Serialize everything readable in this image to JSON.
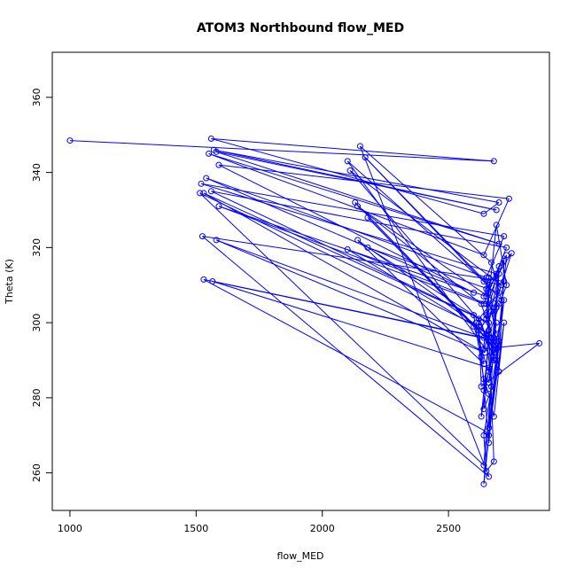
{
  "chart_data": {
    "type": "line",
    "title": "ATOM3 Northbound flow_MED",
    "xlabel": "flow_MED",
    "ylabel": "Theta (K)",
    "xlim": [
      930,
      2900
    ],
    "ylim": [
      250,
      372
    ],
    "x_ticks": [
      1000,
      1500,
      2000,
      2500
    ],
    "y_ticks": [
      260,
      280,
      300,
      320,
      340,
      360
    ],
    "grid": false,
    "line_color": "#0000ff",
    "marker": "open-circle",
    "series": [
      {
        "x": [
          1000,
          2680,
          1560,
          2640,
          2700,
          1570,
          2690,
          1580,
          2700,
          1550,
          2640,
          2740,
          1590,
          2600,
          1540,
          2650,
          2720,
          1520,
          2690,
          2650,
          1590,
          2640,
          2730,
          1560,
          2660,
          1530,
          2645,
          1580,
          2640,
          1565,
          2660,
          2700,
          1530,
          2650,
          2640,
          1515,
          2620,
          2660,
          2720,
          1525,
          2660,
          2150,
          2670,
          2710,
          2170,
          2660,
          2650,
          2680,
          2100,
          2640,
          2710,
          2110,
          2630,
          2650,
          2130,
          2620,
          2700,
          2140,
          2630,
          2690,
          2180,
          2600,
          2660,
          2690,
          2100,
          2680,
          2140,
          2640,
          2610,
          2700,
          2180,
          2600,
          2640,
          2660,
          2680,
          2720,
          2660,
          2730,
          2650,
          2690,
          2670,
          2630,
          2700,
          2680,
          2640,
          2720,
          2660,
          2700,
          2650,
          2690,
          2730,
          2640,
          2860,
          2630,
          2620,
          2700,
          2660,
          2640,
          2750,
          2680,
          2690,
          2650,
          2670,
          2660,
          2700,
          2640,
          2650,
          2680,
          2660,
          2640,
          2700,
          2720,
          2650,
          2680,
          2640,
          2660,
          2630,
          2690
        ],
        "y": [
          348.5,
          343,
          349,
          329,
          332,
          346,
          330,
          345.5,
          321,
          345,
          318,
          333,
          342,
          308,
          338.5,
          312,
          323,
          337,
          313,
          307,
          331,
          305,
          320,
          335,
          300,
          334.5,
          292,
          322,
          296,
          311,
          288,
          295,
          311.5,
          271,
          262,
          334.5,
          299,
          268,
          311,
          323,
          259,
          347,
          316,
          306,
          344,
          310,
          302,
          290,
          343,
          311,
          310,
          340.5,
          300,
          296,
          332,
          298,
          305,
          331,
          305,
          293,
          328,
          299,
          287,
          304,
          319.5,
          296,
          322,
          289,
          300,
          308,
          320,
          302,
          285,
          281,
          275,
          300,
          270,
          318,
          309,
          297,
          303,
          291,
          313,
          294,
          257,
          306,
          284,
          315,
          301,
          326,
          310,
          293,
          294.5,
          283,
          301,
          287,
          312,
          307,
          318.5,
          304,
          290,
          297,
          283,
          272,
          295,
          270,
          260.5,
          263,
          298,
          277,
          287,
          316.5,
          305,
          292,
          282,
          295,
          275,
          300
        ]
      }
    ]
  }
}
